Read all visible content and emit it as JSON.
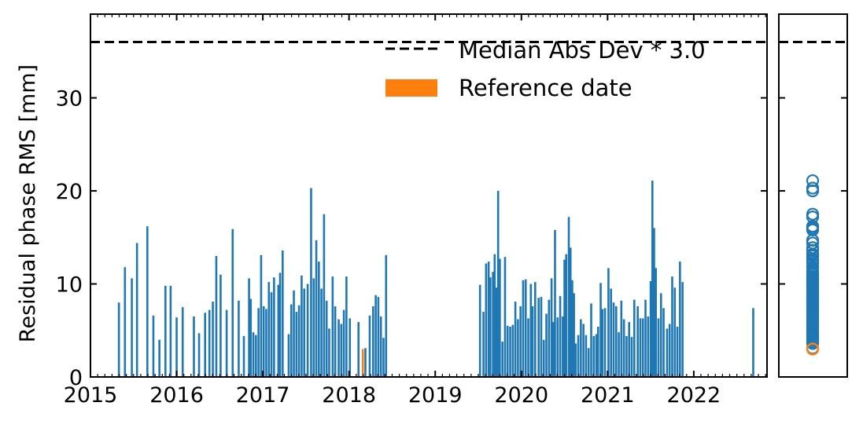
{
  "chart_data": {
    "type": "bar",
    "title": "",
    "xlabel": "",
    "ylabel": "Residual phase RMS [mm]",
    "xlim": [
      2015.0,
      2022.85
    ],
    "ylim": [
      0,
      39
    ],
    "x_ticks": [
      "2015",
      "2016",
      "2017",
      "2018",
      "2019",
      "2020",
      "2021",
      "2022"
    ],
    "y_ticks": [
      "0",
      "10",
      "20",
      "30"
    ],
    "grid": false,
    "legend_position": "top-right",
    "threshold": {
      "name": "Median Abs Dev * 3.0",
      "value": 36.0,
      "color": "#000000",
      "style": "dashed"
    },
    "reference": {
      "name": "Reference date",
      "x": 2018.16,
      "value": 3.0,
      "color": "#ff7f0e"
    },
    "series": [
      {
        "color": "#1f77b4",
        "points": [
          [
            2015.33,
            8.0
          ],
          [
            2015.4,
            11.8
          ],
          [
            2015.48,
            10.6
          ],
          [
            2015.54,
            14.4
          ],
          [
            2015.66,
            16.2
          ],
          [
            2015.73,
            6.6
          ],
          [
            2015.8,
            4.0
          ],
          [
            2015.87,
            9.8
          ],
          [
            2015.93,
            9.8
          ],
          [
            2016.0,
            6.4
          ],
          [
            2016.07,
            7.5
          ],
          [
            2016.2,
            6.5
          ],
          [
            2016.26,
            4.7
          ],
          [
            2016.33,
            6.9
          ],
          [
            2016.38,
            7.2
          ],
          [
            2016.42,
            8.1
          ],
          [
            2016.46,
            13.0
          ],
          [
            2016.51,
            11.0
          ],
          [
            2016.58,
            7.2
          ],
          [
            2016.65,
            15.9
          ],
          [
            2016.72,
            8.2
          ],
          [
            2016.78,
            4.4
          ],
          [
            2016.84,
            10.6
          ],
          [
            2016.86,
            8.4
          ],
          [
            2016.89,
            4.8
          ],
          [
            2016.92,
            4.5
          ],
          [
            2016.95,
            7.4
          ],
          [
            2016.98,
            13.1
          ],
          [
            2017.01,
            7.6
          ],
          [
            2017.04,
            7.3
          ],
          [
            2017.07,
            10.2
          ],
          [
            2017.1,
            9.1
          ],
          [
            2017.13,
            10.7
          ],
          [
            2017.18,
            9.9
          ],
          [
            2017.2,
            11.2
          ],
          [
            2017.23,
            13.6
          ],
          [
            2017.3,
            4.6
          ],
          [
            2017.33,
            7.8
          ],
          [
            2017.36,
            9.3
          ],
          [
            2017.39,
            7.0
          ],
          [
            2017.42,
            7.7
          ],
          [
            2017.45,
            10.9
          ],
          [
            2017.48,
            9.5
          ],
          [
            2017.52,
            10.0
          ],
          [
            2017.56,
            20.3
          ],
          [
            2017.59,
            10.6
          ],
          [
            2017.62,
            14.7
          ],
          [
            2017.65,
            12.4
          ],
          [
            2017.68,
            9.5
          ],
          [
            2017.71,
            17.5
          ],
          [
            2017.74,
            8.2
          ],
          [
            2017.77,
            5.2
          ],
          [
            2017.81,
            10.8
          ],
          [
            2017.84,
            7.6
          ],
          [
            2017.88,
            6.2
          ],
          [
            2017.91,
            5.7
          ],
          [
            2017.94,
            7.2
          ],
          [
            2017.97,
            10.8
          ],
          [
            2018.01,
            6.3
          ],
          [
            2018.11,
            5.9
          ],
          [
            2018.19,
            3.1
          ],
          [
            2018.24,
            6.6
          ],
          [
            2018.28,
            7.6
          ],
          [
            2018.31,
            8.8
          ],
          [
            2018.34,
            8.6
          ],
          [
            2018.37,
            6.5
          ],
          [
            2018.4,
            4.2
          ],
          [
            2018.43,
            13.1
          ],
          [
            2019.52,
            9.9
          ],
          [
            2019.56,
            7.0
          ],
          [
            2019.59,
            12.2
          ],
          [
            2019.62,
            12.4
          ],
          [
            2019.64,
            10.7
          ],
          [
            2019.67,
            11.3
          ],
          [
            2019.69,
            13.2
          ],
          [
            2019.71,
            9.6
          ],
          [
            2019.73,
            20.0
          ],
          [
            2019.75,
            12.7
          ],
          [
            2019.78,
            3.8
          ],
          [
            2019.81,
            12.9
          ],
          [
            2019.84,
            5.5
          ],
          [
            2019.87,
            5.4
          ],
          [
            2019.9,
            5.6
          ],
          [
            2019.93,
            8.1
          ],
          [
            2019.96,
            6.2
          ],
          [
            2019.99,
            7.6
          ],
          [
            2020.02,
            10.4
          ],
          [
            2020.05,
            10.5
          ],
          [
            2020.08,
            6.3
          ],
          [
            2020.11,
            10.0
          ],
          [
            2020.13,
            7.6
          ],
          [
            2020.16,
            10.2
          ],
          [
            2020.2,
            8.5
          ],
          [
            2020.23,
            8.6
          ],
          [
            2020.26,
            4.0
          ],
          [
            2020.29,
            6.8
          ],
          [
            2020.32,
            8.3
          ],
          [
            2020.35,
            10.6
          ],
          [
            2020.37,
            5.9
          ],
          [
            2020.39,
            15.8
          ],
          [
            2020.42,
            6.4
          ],
          [
            2020.45,
            8.7
          ],
          [
            2020.48,
            6.5
          ],
          [
            2020.5,
            12.6
          ],
          [
            2020.52,
            13.2
          ],
          [
            2020.55,
            17.2
          ],
          [
            2020.57,
            13.9
          ],
          [
            2020.59,
            10.4
          ],
          [
            2020.61,
            9.0
          ],
          [
            2020.63,
            3.6
          ],
          [
            2020.66,
            4.5
          ],
          [
            2020.69,
            6.2
          ],
          [
            2020.72,
            5.7
          ],
          [
            2020.75,
            4.5
          ],
          [
            2020.78,
            3.1
          ],
          [
            2020.81,
            7.9
          ],
          [
            2020.84,
            4.4
          ],
          [
            2020.87,
            4.6
          ],
          [
            2020.89,
            5.4
          ],
          [
            2020.92,
            10.1
          ],
          [
            2020.94,
            7.3
          ],
          [
            2020.97,
            7.4
          ],
          [
            2021.01,
            11.7
          ],
          [
            2021.04,
            9.5
          ],
          [
            2021.07,
            8.0
          ],
          [
            2021.1,
            7.6
          ],
          [
            2021.13,
            4.8
          ],
          [
            2021.16,
            8.2
          ],
          [
            2021.19,
            6.2
          ],
          [
            2021.22,
            4.4
          ],
          [
            2021.25,
            5.9
          ],
          [
            2021.28,
            4.3
          ],
          [
            2021.31,
            8.3
          ],
          [
            2021.35,
            7.6
          ],
          [
            2021.38,
            6.3
          ],
          [
            2021.41,
            6.3
          ],
          [
            2021.44,
            8.3
          ],
          [
            2021.47,
            6.5
          ],
          [
            2021.5,
            10.3
          ],
          [
            2021.52,
            21.1
          ],
          [
            2021.54,
            16.0
          ],
          [
            2021.56,
            11.7
          ],
          [
            2021.59,
            6.3
          ],
          [
            2021.62,
            9.0
          ],
          [
            2021.65,
            7.4
          ],
          [
            2021.69,
            5.2
          ],
          [
            2021.72,
            5.7
          ],
          [
            2021.75,
            10.8
          ],
          [
            2021.78,
            9.6
          ],
          [
            2021.81,
            5.4
          ],
          [
            2021.84,
            12.4
          ],
          [
            2021.87,
            10.2
          ],
          [
            2022.69,
            7.4
          ]
        ]
      }
    ],
    "side_panel": {
      "type": "scatter",
      "values": [
        21.1,
        20.3,
        20.0,
        17.5,
        17.2,
        16.2,
        16.0,
        15.9,
        15.8,
        14.7,
        14.4,
        13.9,
        13.6,
        13.2,
        13.1,
        13.0,
        12.7,
        12.6,
        12.4,
        12.2,
        11.8,
        11.7,
        11.3,
        11.2,
        11.0,
        10.8,
        10.7,
        10.6,
        10.5,
        10.4,
        10.3,
        10.2,
        10.1,
        10.0,
        9.9,
        9.8,
        9.6,
        9.5,
        9.3,
        9.1,
        9.0,
        8.8,
        8.7,
        8.6,
        8.5,
        8.4,
        8.3,
        8.2,
        8.1,
        8.0,
        7.9,
        7.8,
        7.7,
        7.6,
        7.5,
        7.4,
        7.3,
        7.2,
        7.0,
        6.9,
        6.8,
        6.6,
        6.5,
        6.4,
        6.3,
        6.2,
        6.0,
        5.9,
        5.7,
        5.6,
        5.5,
        5.4,
        5.2,
        5.0,
        4.8,
        4.7,
        4.6,
        4.5,
        4.4,
        4.3,
        4.2,
        4.0,
        3.8,
        3.6,
        3.1
      ],
      "reference_value": 3.0
    }
  }
}
